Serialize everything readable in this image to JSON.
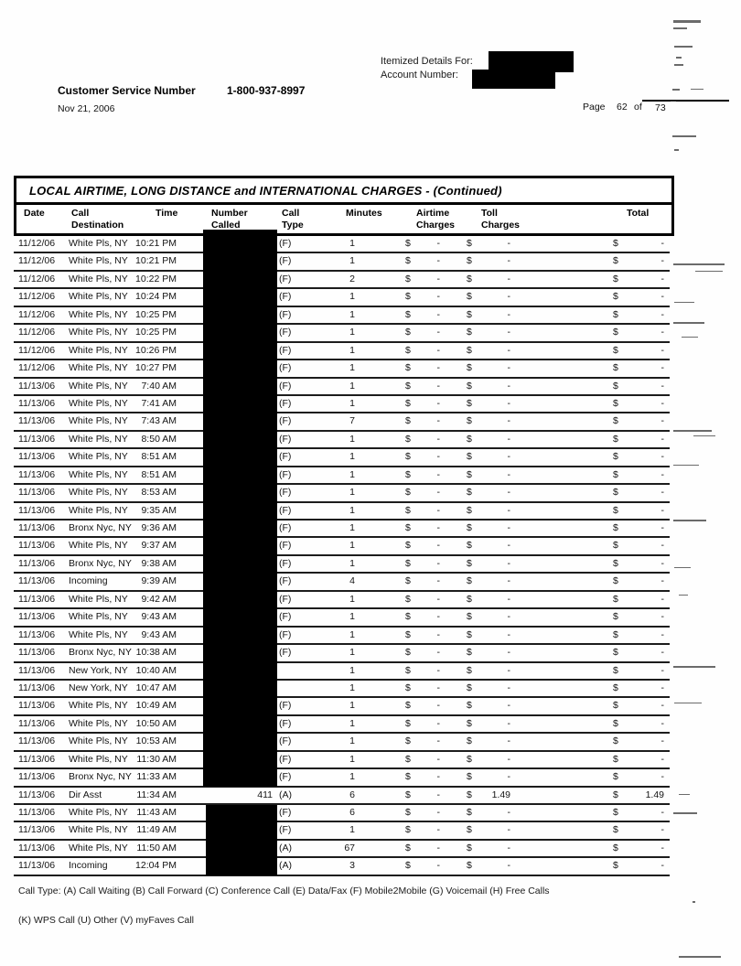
{
  "header": {
    "itemized_label": "Itemized Details For:",
    "account_label": "Account Number:",
    "customer_service_label": "Customer Service Number",
    "customer_service_number": "1-800-937-8997",
    "statement_date": "Nov 21, 2006",
    "page_label": "Page",
    "page_current": "62",
    "page_of": "of",
    "page_total": "73"
  },
  "table": {
    "title": "LOCAL AIRTIME, LONG DISTANCE and INTERNATIONAL CHARGES  - (Continued)",
    "columns": [
      {
        "l1": "Date",
        "l2": ""
      },
      {
        "l1": "Call",
        "l2": "Destination"
      },
      {
        "l1": "Time",
        "l2": ""
      },
      {
        "l1": "Number",
        "l2": "Called"
      },
      {
        "l1": "Call",
        "l2": "Type"
      },
      {
        "l1": "Minutes",
        "l2": ""
      },
      {
        "l1": "Airtime",
        "l2": "Charges"
      },
      {
        "l1": "Toll",
        "l2": "Charges"
      },
      {
        "l1": "Total",
        "l2": ""
      }
    ],
    "currency": "$",
    "redaction_note": "number-called-column-redacted",
    "rows": [
      [
        "11/12/06",
        "White Pls, NY",
        "10:21 PM",
        "",
        "(F)",
        "1",
        "-",
        "-",
        "-"
      ],
      [
        "11/12/06",
        "White Pls, NY",
        "10:21 PM",
        "",
        "(F)",
        "1",
        "-",
        "-",
        "-"
      ],
      [
        "11/12/06",
        "White Pls, NY",
        "10:22 PM",
        "",
        "(F)",
        "2",
        "-",
        "-",
        "-"
      ],
      [
        "11/12/06",
        "White Pls, NY",
        "10:24 PM",
        "",
        "(F)",
        "1",
        "-",
        "-",
        "-"
      ],
      [
        "11/12/06",
        "White Pls, NY",
        "10:25 PM",
        "",
        "(F)",
        "1",
        "-",
        "-",
        "-"
      ],
      [
        "11/12/06",
        "White Pls, NY",
        "10:25 PM",
        "",
        "(F)",
        "1",
        "-",
        "-",
        "-"
      ],
      [
        "11/12/06",
        "White Pls, NY",
        "10:26 PM",
        "",
        "(F)",
        "1",
        "-",
        "-",
        "-"
      ],
      [
        "11/12/06",
        "White Pls, NY",
        "10:27 PM",
        "",
        "(F)",
        "1",
        "-",
        "-",
        "-"
      ],
      [
        "11/13/06",
        "White Pls, NY",
        "7:40 AM",
        "",
        "(F)",
        "1",
        "-",
        "-",
        "-"
      ],
      [
        "11/13/06",
        "White Pls, NY",
        "7:41 AM",
        "",
        "(F)",
        "1",
        "-",
        "-",
        "-"
      ],
      [
        "11/13/06",
        "White Pls, NY",
        "7:43 AM",
        "",
        "(F)",
        "7",
        "-",
        "-",
        "-"
      ],
      [
        "11/13/06",
        "White Pls, NY",
        "8:50 AM",
        "",
        "(F)",
        "1",
        "-",
        "-",
        "-"
      ],
      [
        "11/13/06",
        "White Pls, NY",
        "8:51 AM",
        "",
        "(F)",
        "1",
        "-",
        "-",
        "-"
      ],
      [
        "11/13/06",
        "White Pls, NY",
        "8:51 AM",
        "",
        "(F)",
        "1",
        "-",
        "-",
        "-"
      ],
      [
        "11/13/06",
        "White Pls, NY",
        "8:53 AM",
        "",
        "(F)",
        "1",
        "-",
        "-",
        "-"
      ],
      [
        "11/13/06",
        "White Pls, NY",
        "9:35 AM",
        "",
        "(F)",
        "1",
        "-",
        "-",
        "-"
      ],
      [
        "11/13/06",
        "Bronx Nyc, NY",
        "9:36 AM",
        "",
        "(F)",
        "1",
        "-",
        "-",
        "-"
      ],
      [
        "11/13/06",
        "White Pls, NY",
        "9:37 AM",
        "",
        "(F)",
        "1",
        "-",
        "-",
        "-"
      ],
      [
        "11/13/06",
        "Bronx Nyc, NY",
        "9:38 AM",
        "",
        "(F)",
        "1",
        "-",
        "-",
        "-"
      ],
      [
        "11/13/06",
        "Incoming",
        "9:39 AM",
        "",
        "(F)",
        "4",
        "-",
        "-",
        "-"
      ],
      [
        "11/13/06",
        "White Pls, NY",
        "9:42 AM",
        "",
        "(F)",
        "1",
        "-",
        "-",
        "-"
      ],
      [
        "11/13/06",
        "White Pls, NY",
        "9:43 AM",
        "",
        "(F)",
        "1",
        "-",
        "-",
        "-"
      ],
      [
        "11/13/06",
        "White Pls, NY",
        "9:43 AM",
        "",
        "(F)",
        "1",
        "-",
        "-",
        "-"
      ],
      [
        "11/13/06",
        "Bronx Nyc, NY",
        "10:38 AM",
        "",
        "(F)",
        "1",
        "-",
        "-",
        "-"
      ],
      [
        "11/13/06",
        "New York, NY",
        "10:40 AM",
        "",
        "",
        "1",
        "-",
        "-",
        "-"
      ],
      [
        "11/13/06",
        "New York, NY",
        "10:47 AM",
        "",
        "",
        "1",
        "-",
        "-",
        "-"
      ],
      [
        "11/13/06",
        "White Pls, NY",
        "10:49 AM",
        "",
        "(F)",
        "1",
        "-",
        "-",
        "-"
      ],
      [
        "11/13/06",
        "White Pls, NY",
        "10:50 AM",
        "",
        "(F)",
        "1",
        "-",
        "-",
        "-"
      ],
      [
        "11/13/06",
        "White Pls, NY",
        "10:53 AM",
        "",
        "(F)",
        "1",
        "-",
        "-",
        "-"
      ],
      [
        "11/13/06",
        "White Pls, NY",
        "11:30 AM",
        "",
        "(F)",
        "1",
        "-",
        "-",
        "-"
      ],
      [
        "11/13/06",
        "Bronx Nyc, NY",
        "11:33 AM",
        "",
        "(F)",
        "1",
        "-",
        "-",
        "-"
      ],
      [
        "11/13/06",
        "Dir Asst",
        "11:34 AM",
        "411",
        "(A)",
        "6",
        "-",
        "1.49",
        "1.49"
      ],
      [
        "11/13/06",
        "White Pls, NY",
        "11:43 AM",
        "",
        "(F)",
        "6",
        "-",
        "-",
        "-"
      ],
      [
        "11/13/06",
        "White Pls, NY",
        "11:49 AM",
        "",
        "(F)",
        "1",
        "-",
        "-",
        "-"
      ],
      [
        "11/13/06",
        "White Pls, NY",
        "11:50 AM",
        "",
        "(A)",
        "67",
        "-",
        "-",
        "-"
      ],
      [
        "11/13/06",
        "Incoming",
        "12:04 PM",
        "",
        "(A)",
        "3",
        "-",
        "-",
        "-"
      ]
    ]
  },
  "legend": {
    "line1": "Call Type: (A) Call Waiting (B) Call Forward (C) Conference Call (E) Data/Fax (F) Mobile2Mobile (G) Voicemail (H) Free Calls",
    "line2": "(K) WPS Call (U) Other (V) myFaves Call"
  },
  "colors": {
    "ink": "#111111",
    "paper": "#fefefe",
    "redaction": "#000000"
  }
}
